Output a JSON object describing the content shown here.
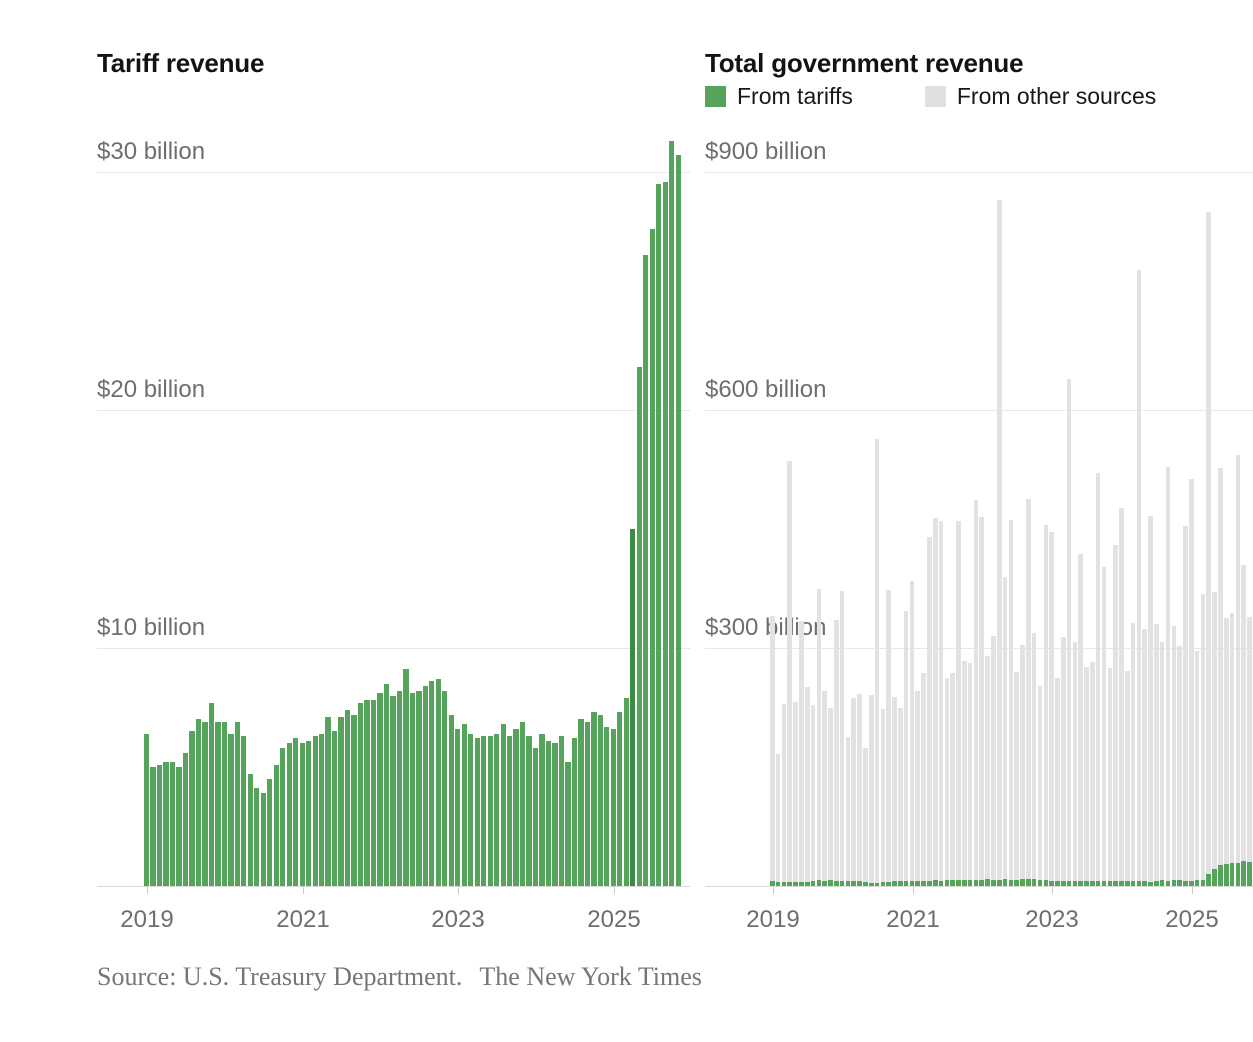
{
  "page": {
    "source_label": "Source: U.S. Treasury Department.",
    "credit": "The New York Times"
  },
  "colors": {
    "green": "#56a35c",
    "green_dark": "#3d8a46",
    "gray_bar": "#e2e2e2",
    "legend_gray": "#e0e0e0",
    "gridline": "#e7e7e7",
    "baseline": "#d9d9d9"
  },
  "chart_data": [
    {
      "type": "bar",
      "title": "Tariff revenue",
      "units": "billions of US dollars per month",
      "x_range": {
        "start": "2019-01",
        "end": "2025-11",
        "frequency": "monthly"
      },
      "x_ticks": {
        "labels": [
          "2019",
          "2021",
          "2023",
          "2025"
        ],
        "month_indices": [
          0,
          24,
          48,
          72
        ]
      },
      "y_axis": {
        "labels": [
          "$30 billion",
          "$20 billion",
          "$10 billion"
        ],
        "values": [
          30,
          20,
          10
        ],
        "max": 30,
        "min": 0
      },
      "highlighted_month": "2025-04",
      "values": [
        6.4,
        5.0,
        5.1,
        5.2,
        5.2,
        5.0,
        5.6,
        6.5,
        7.0,
        6.9,
        7.7,
        6.9,
        6.9,
        6.4,
        6.9,
        6.3,
        4.7,
        4.1,
        3.9,
        4.5,
        5.1,
        5.8,
        6.0,
        6.2,
        6.0,
        6.1,
        6.3,
        6.4,
        7.1,
        6.5,
        7.1,
        7.4,
        7.2,
        7.7,
        7.8,
        7.8,
        8.1,
        8.5,
        8.0,
        8.2,
        9.1,
        8.1,
        8.2,
        8.4,
        8.6,
        8.7,
        8.2,
        7.2,
        6.6,
        6.8,
        6.4,
        6.2,
        6.3,
        6.3,
        6.4,
        6.8,
        6.3,
        6.6,
        6.9,
        6.3,
        5.8,
        6.4,
        6.1,
        6.0,
        6.3,
        5.2,
        6.2,
        7.0,
        6.9,
        7.3,
        7.2,
        6.7,
        6.6,
        7.3,
        7.9,
        15.0,
        21.8,
        26.5,
        27.6,
        29.5,
        29.6,
        31.3,
        30.7
      ]
    },
    {
      "type": "stacked-bar",
      "title": "Total government revenue",
      "units": "billions of US dollars per month",
      "legend": [
        "From tariffs",
        "From other sources"
      ],
      "x_range": {
        "start": "2019-01",
        "end": "2025-11",
        "frequency": "monthly"
      },
      "x_ticks": {
        "labels": [
          "2019",
          "2021",
          "2023",
          "2025"
        ],
        "month_indices": [
          0,
          24,
          48,
          72
        ]
      },
      "y_axis": {
        "labels": [
          "$900 billion",
          "$600 billion",
          "$300 billion"
        ],
        "values": [
          900,
          600,
          300
        ],
        "max": 900,
        "min": 0
      },
      "series": [
        {
          "name": "From tariffs",
          "values": [
            6.4,
            5.0,
            5.1,
            5.2,
            5.2,
            5.0,
            5.6,
            6.5,
            7.0,
            6.9,
            7.7,
            6.9,
            6.9,
            6.4,
            6.9,
            6.3,
            4.7,
            4.1,
            3.9,
            4.5,
            5.1,
            5.8,
            6.0,
            6.2,
            6.0,
            6.1,
            6.3,
            6.4,
            7.1,
            6.5,
            7.1,
            7.4,
            7.2,
            7.7,
            7.8,
            7.8,
            8.1,
            8.5,
            8.0,
            8.2,
            9.1,
            8.1,
            8.2,
            8.4,
            8.6,
            8.7,
            8.2,
            7.2,
            6.6,
            6.8,
            6.4,
            6.2,
            6.3,
            6.3,
            6.4,
            6.8,
            6.3,
            6.6,
            6.9,
            6.3,
            5.8,
            6.4,
            6.1,
            6.0,
            6.3,
            5.2,
            6.2,
            7.0,
            6.9,
            7.3,
            7.2,
            6.7,
            6.6,
            7.3,
            7.9,
            15.0,
            21.8,
            26.5,
            27.6,
            29.5,
            29.6,
            31.3,
            30.7
          ]
        },
        {
          "name": "From other sources",
          "values": [
            334,
            162,
            224,
            531,
            227,
            329,
            245,
            222,
            367,
            239,
            217,
            329,
            365,
            182,
            230,
            236,
            169,
            237,
            559,
            219,
            368,
            232,
            219,
            340,
            379,
            240,
            262,
            433,
            457,
            453,
            255,
            261,
            453,
            276,
            273,
            479,
            457,
            282,
            307,
            856,
            380,
            453,
            261,
            296,
            479,
            310,
            244,
            448,
            440,
            255,
            307,
            633,
            301,
            412,
            270,
            276,
            514,
            396,
            268,
            423,
            471,
            265,
            326,
            770,
            318,
            461,
            324,
            300,
            521,
            320,
            295,
            447,
            506,
            289,
            360,
            835,
            349,
            500,
            310,
            315,
            514,
            373,
            308
          ]
        }
      ]
    }
  ]
}
